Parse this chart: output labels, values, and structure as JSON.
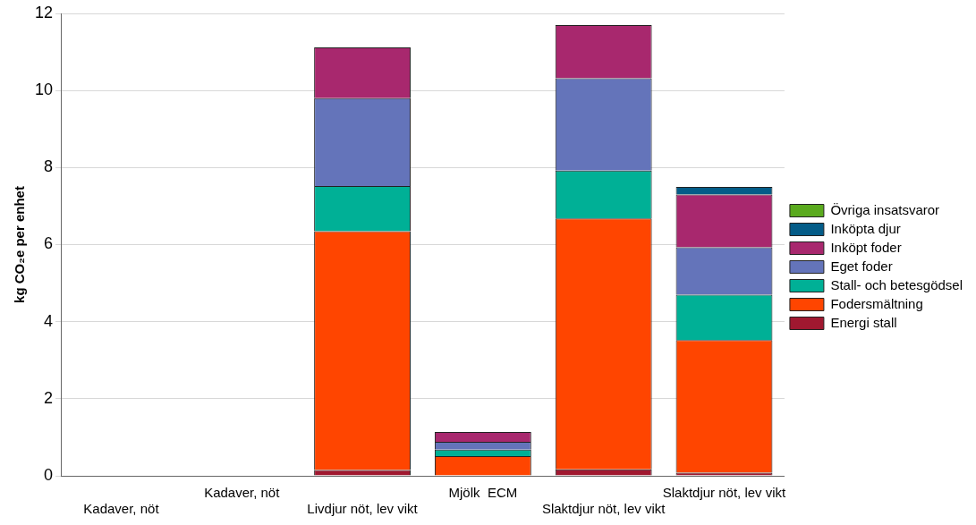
{
  "chart_data": {
    "type": "bar",
    "stacked": true,
    "ylabel": "kg CO₂e per enhet",
    "categories": [
      "Kadaver, nöt",
      "Kadaver, nöt",
      "Livdjur nöt, lev vikt",
      "Mjölk  ECM",
      "Slaktdjur nöt, lev vikt",
      "Slaktdjur nöt, lev vikt"
    ],
    "series": [
      {
        "name": "Energi stall",
        "color": "#a01830",
        "values": [
          0,
          0,
          0.15,
          0.01,
          0.17,
          0.08
        ]
      },
      {
        "name": "Fodersmältning",
        "color": "#ff4500",
        "values": [
          0,
          0,
          6.2,
          0.5,
          6.51,
          3.44
        ]
      },
      {
        "name": "Stall- och betesgödsel",
        "color": "#00b096",
        "values": [
          0,
          0,
          1.17,
          0.17,
          1.24,
          1.18
        ]
      },
      {
        "name": "Eget foder",
        "color": "#6474ba",
        "values": [
          0,
          0,
          2.28,
          0.2,
          2.4,
          1.23
        ]
      },
      {
        "name": "Inköpt foder",
        "color": "#a8286e",
        "values": [
          0,
          0,
          1.32,
          0.26,
          1.38,
          1.37
        ]
      },
      {
        "name": "Inköpta djur",
        "color": "#045c88",
        "values": [
          0,
          0,
          0,
          0,
          0,
          0.2
        ]
      },
      {
        "name": "Övriga insatsvaror",
        "color": "#5aaa1e",
        "values": [
          0,
          0,
          0,
          0,
          0,
          0
        ]
      }
    ],
    "ylim": [
      0,
      12
    ],
    "yticks": [
      0,
      2,
      4,
      6,
      8,
      10,
      12
    ],
    "grid": "y",
    "legend": "right"
  }
}
